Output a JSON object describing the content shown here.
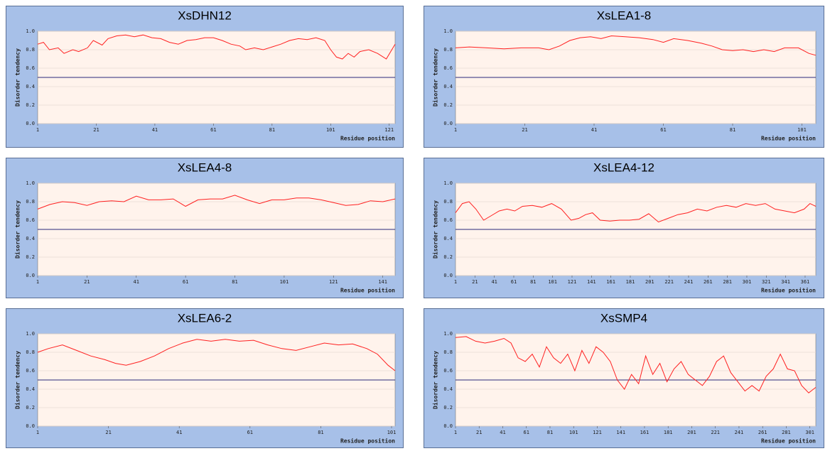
{
  "chart_data": [
    {
      "type": "line",
      "title": "XsDHN12",
      "ylabel": "Disorder tendency",
      "xlabel": "Residue position",
      "color": "#ff2020",
      "threshold": 0.5,
      "threshold_color": "#2a2a7a",
      "grid": true,
      "x": [
        1,
        3,
        5,
        8,
        10,
        13,
        15,
        18,
        20,
        23,
        25,
        28,
        31,
        34,
        37,
        40,
        43,
        46,
        49,
        52,
        55,
        58,
        61,
        64,
        67,
        70,
        72,
        75,
        78,
        81,
        84,
        87,
        90,
        93,
        96,
        99,
        101,
        103,
        105,
        107,
        109,
        111,
        114,
        117,
        120,
        123
      ],
      "values": [
        0.86,
        0.88,
        0.8,
        0.82,
        0.76,
        0.8,
        0.78,
        0.82,
        0.9,
        0.85,
        0.92,
        0.95,
        0.96,
        0.94,
        0.96,
        0.93,
        0.92,
        0.88,
        0.86,
        0.9,
        0.91,
        0.93,
        0.93,
        0.9,
        0.86,
        0.84,
        0.8,
        0.82,
        0.8,
        0.83,
        0.86,
        0.9,
        0.92,
        0.91,
        0.93,
        0.9,
        0.8,
        0.72,
        0.7,
        0.76,
        0.72,
        0.78,
        0.8,
        0.76,
        0.7,
        0.86
      ],
      "xlim": [
        1,
        123
      ],
      "xticks": [
        1,
        21,
        41,
        61,
        81,
        101,
        121
      ],
      "ylim": [
        0,
        1
      ],
      "yticks": [
        {
          "value": 0,
          "label": "0.0"
        },
        0.2,
        0.4,
        0.6,
        0.8,
        {
          "value": 1,
          "label": "1.0"
        }
      ]
    },
    {
      "type": "line",
      "title": "XsLEA1-8",
      "ylabel": "Disorder tendency",
      "xlabel": "Residue position",
      "color": "#ff2020",
      "threshold": 0.5,
      "threshold_color": "#2a2a7a",
      "grid": true,
      "x": [
        1,
        5,
        10,
        15,
        20,
        25,
        28,
        31,
        34,
        37,
        40,
        43,
        46,
        50,
        54,
        58,
        61,
        64,
        68,
        72,
        75,
        78,
        81,
        84,
        87,
        90,
        93,
        96,
        100,
        103,
        105
      ],
      "values": [
        0.82,
        0.83,
        0.82,
        0.81,
        0.82,
        0.82,
        0.8,
        0.84,
        0.9,
        0.93,
        0.94,
        0.92,
        0.95,
        0.94,
        0.93,
        0.91,
        0.88,
        0.92,
        0.9,
        0.87,
        0.84,
        0.8,
        0.79,
        0.8,
        0.78,
        0.8,
        0.78,
        0.82,
        0.82,
        0.76,
        0.74
      ],
      "xlim": [
        1,
        105
      ],
      "xticks": [
        1,
        21,
        41,
        61,
        81,
        101
      ],
      "ylim": [
        0,
        1
      ],
      "yticks": [
        {
          "value": 0,
          "label": "0.0"
        },
        0.2,
        0.4,
        0.6,
        0.8,
        {
          "value": 1,
          "label": "1.0"
        }
      ]
    },
    {
      "type": "line",
      "title": "XsLEA4-8",
      "ylabel": "Disorder tendency",
      "xlabel": "Residue position",
      "color": "#ff2020",
      "threshold": 0.5,
      "threshold_color": "#2a2a7a",
      "grid": true,
      "x": [
        1,
        6,
        11,
        16,
        21,
        26,
        31,
        36,
        41,
        46,
        51,
        56,
        61,
        66,
        71,
        76,
        81,
        86,
        91,
        96,
        101,
        106,
        111,
        116,
        121,
        126,
        131,
        136,
        141,
        146
      ],
      "values": [
        0.72,
        0.77,
        0.8,
        0.79,
        0.76,
        0.8,
        0.81,
        0.8,
        0.86,
        0.82,
        0.82,
        0.83,
        0.75,
        0.82,
        0.83,
        0.83,
        0.87,
        0.82,
        0.78,
        0.82,
        0.82,
        0.84,
        0.84,
        0.82,
        0.79,
        0.76,
        0.77,
        0.81,
        0.8,
        0.83
      ],
      "xlim": [
        1,
        146
      ],
      "xticks": [
        1,
        21,
        41,
        61,
        81,
        101,
        121,
        141
      ],
      "ylim": [
        0,
        1
      ],
      "yticks": [
        {
          "value": 0,
          "label": "0.0"
        },
        0.2,
        0.4,
        0.6,
        0.8,
        {
          "value": 1,
          "label": "1.0"
        }
      ]
    },
    {
      "type": "line",
      "title": "XsLEA4-12",
      "ylabel": "Disorder tendency",
      "xlabel": "Residue position",
      "color": "#ff2020",
      "threshold": 0.5,
      "threshold_color": "#2a2a7a",
      "grid": true,
      "x": [
        1,
        8,
        15,
        22,
        30,
        38,
        46,
        54,
        62,
        70,
        80,
        90,
        100,
        110,
        120,
        128,
        135,
        142,
        150,
        160,
        170,
        180,
        190,
        200,
        210,
        220,
        230,
        240,
        250,
        260,
        270,
        280,
        290,
        300,
        310,
        320,
        330,
        340,
        350,
        360,
        366,
        372
      ],
      "values": [
        0.68,
        0.78,
        0.8,
        0.72,
        0.6,
        0.65,
        0.7,
        0.72,
        0.7,
        0.75,
        0.76,
        0.74,
        0.78,
        0.72,
        0.6,
        0.62,
        0.66,
        0.68,
        0.6,
        0.59,
        0.6,
        0.6,
        0.61,
        0.67,
        0.58,
        0.62,
        0.66,
        0.68,
        0.72,
        0.7,
        0.74,
        0.76,
        0.74,
        0.78,
        0.76,
        0.78,
        0.72,
        0.7,
        0.68,
        0.72,
        0.78,
        0.75
      ],
      "xlim": [
        1,
        372
      ],
      "xticks": [
        1,
        21,
        41,
        61,
        81,
        101,
        121,
        141,
        161,
        181,
        201,
        221,
        241,
        261,
        281,
        301,
        321,
        341,
        361
      ],
      "ylim": [
        0,
        1
      ],
      "yticks": [
        {
          "value": 0,
          "label": "0.0"
        },
        0.2,
        0.4,
        0.6,
        0.8,
        {
          "value": 1,
          "label": "1.0"
        }
      ]
    },
    {
      "type": "line",
      "title": "XsLEA6-2",
      "ylabel": "Disorder tendency",
      "xlabel": "Residue position",
      "color": "#ff2020",
      "threshold": 0.5,
      "threshold_color": "#2a2a7a",
      "grid": true,
      "x": [
        1,
        4,
        8,
        12,
        16,
        20,
        23,
        26,
        30,
        34,
        38,
        42,
        46,
        50,
        54,
        58,
        62,
        66,
        70,
        74,
        78,
        82,
        86,
        90,
        94,
        97,
        100,
        102
      ],
      "values": [
        0.8,
        0.84,
        0.88,
        0.82,
        0.76,
        0.72,
        0.68,
        0.66,
        0.7,
        0.76,
        0.84,
        0.9,
        0.94,
        0.92,
        0.94,
        0.92,
        0.93,
        0.88,
        0.84,
        0.82,
        0.86,
        0.9,
        0.88,
        0.89,
        0.84,
        0.78,
        0.66,
        0.6
      ],
      "xlim": [
        1,
        102
      ],
      "xticks": [
        1,
        21,
        41,
        61,
        81,
        101
      ],
      "ylim": [
        0,
        1
      ],
      "yticks": [
        {
          "value": 0,
          "label": "0.0"
        },
        0.2,
        0.4,
        0.6,
        0.8,
        {
          "value": 1,
          "label": "1.0"
        }
      ]
    },
    {
      "type": "line",
      "title": "XsSMP4",
      "ylabel": "Disorder tendency",
      "xlabel": "Residue position",
      "color": "#ff2020",
      "threshold": 0.5,
      "threshold_color": "#2a2a7a",
      "grid": true,
      "x": [
        1,
        10,
        18,
        26,
        34,
        42,
        48,
        54,
        60,
        66,
        72,
        78,
        84,
        90,
        96,
        102,
        108,
        114,
        120,
        126,
        132,
        138,
        144,
        150,
        156,
        162,
        168,
        174,
        180,
        186,
        192,
        198,
        204,
        210,
        216,
        222,
        228,
        234,
        240,
        246,
        252,
        258,
        264,
        270,
        276,
        282,
        288,
        294,
        300,
        306
      ],
      "values": [
        0.96,
        0.97,
        0.92,
        0.9,
        0.92,
        0.95,
        0.9,
        0.74,
        0.7,
        0.78,
        0.64,
        0.86,
        0.74,
        0.68,
        0.78,
        0.6,
        0.82,
        0.68,
        0.86,
        0.8,
        0.7,
        0.5,
        0.4,
        0.56,
        0.46,
        0.76,
        0.56,
        0.68,
        0.48,
        0.62,
        0.7,
        0.56,
        0.5,
        0.44,
        0.54,
        0.7,
        0.76,
        0.58,
        0.48,
        0.38,
        0.44,
        0.38,
        0.54,
        0.62,
        0.78,
        0.62,
        0.6,
        0.44,
        0.36,
        0.42
      ],
      "xlim": [
        1,
        306
      ],
      "xticks": [
        1,
        21,
        41,
        61,
        81,
        101,
        121,
        141,
        161,
        181,
        201,
        221,
        241,
        261,
        281,
        301
      ],
      "ylim": [
        0,
        1
      ],
      "yticks": [
        {
          "value": 0,
          "label": "0.0"
        },
        0.2,
        0.4,
        0.6,
        0.8,
        {
          "value": 1,
          "label": "1.0"
        }
      ]
    }
  ]
}
